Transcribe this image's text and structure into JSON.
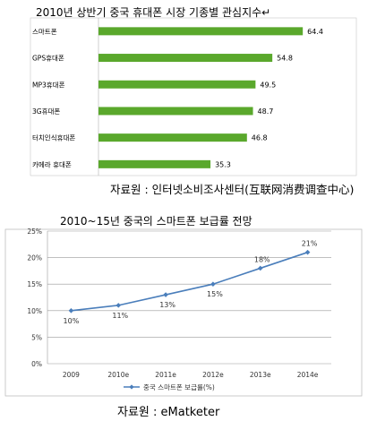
{
  "chart_data": [
    {
      "type": "bar",
      "orientation": "horizontal",
      "title": "2010년 상반기 중국 휴대폰 시장 기종별 관심지수↵",
      "source": "자료원 : 인터넷소비조사센터(互联网消费调查中心)",
      "categories": [
        "스마트폰",
        "GPS휴대폰",
        "MP3휴대폰",
        "3G휴대폰",
        "터치인식휴대폰",
        "카메라 휴대폰"
      ],
      "values": [
        64.4,
        54.8,
        49.5,
        48.7,
        46.8,
        35.3
      ],
      "value_labels": [
        "64.4",
        "54.8",
        "49.5",
        "48.7",
        "46.8",
        "35.3"
      ],
      "xlim": [
        0,
        70
      ],
      "bar_color": "#5aa82c",
      "grid": false
    },
    {
      "type": "line",
      "title": "2010~15년 중국의 스마트폰 보급률 전망",
      "source": "자료원 : eMatketer",
      "categories": [
        "2009",
        "2010e",
        "2011e",
        "2012e",
        "2013e",
        "2014e"
      ],
      "series": [
        {
          "name": "중국 스마트폰 보급률(%)",
          "values": [
            10,
            11,
            13,
            15,
            18,
            21
          ],
          "value_labels": [
            "10%",
            "11%",
            "13%",
            "15%",
            "18%",
            "21%"
          ]
        }
      ],
      "ylim": [
        0,
        25
      ],
      "y_ticks": [
        "0%",
        "5%",
        "10%",
        "15%",
        "20%",
        "25%"
      ],
      "grid": true,
      "legend_position": "bottom",
      "line_color": "#4a7ebb"
    }
  ]
}
